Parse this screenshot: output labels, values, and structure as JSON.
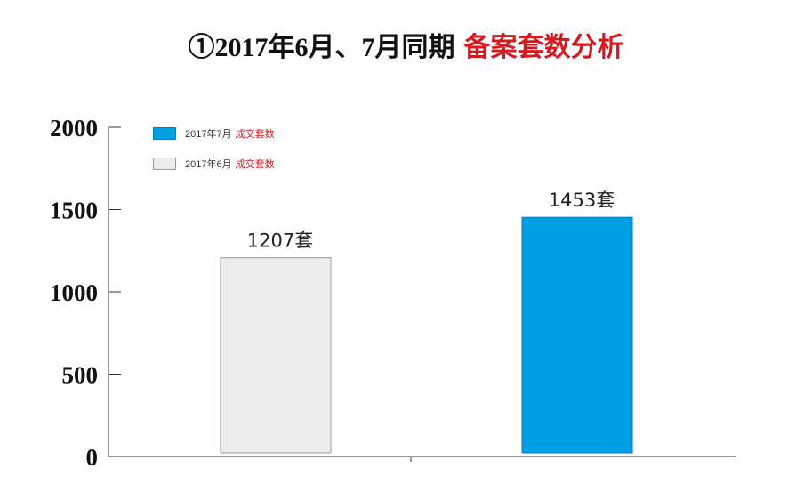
{
  "title": {
    "main": "①2017年6月、7月同期",
    "accent": "备案套数分析"
  },
  "legend": [
    {
      "prefix": "2017年7月",
      "label": "成交套数",
      "color": "#009fe3",
      "border": "#0b7bbf"
    },
    {
      "prefix": "2017年6月",
      "label": "成交套数",
      "color": "#ececec",
      "border": "#999999"
    }
  ],
  "chart_data": {
    "type": "bar",
    "categories": [
      "2017年6月",
      "2017年7月"
    ],
    "values": [
      1207,
      1453
    ],
    "data_labels": [
      "1207套",
      "1453套"
    ],
    "colors": [
      "#ececec",
      "#009fe3"
    ],
    "ylim": [
      0,
      2000
    ],
    "yticks": [
      "0",
      "500",
      "1000",
      "1500",
      "2000"
    ],
    "xlabel": "",
    "ylabel": "",
    "grid": false
  }
}
